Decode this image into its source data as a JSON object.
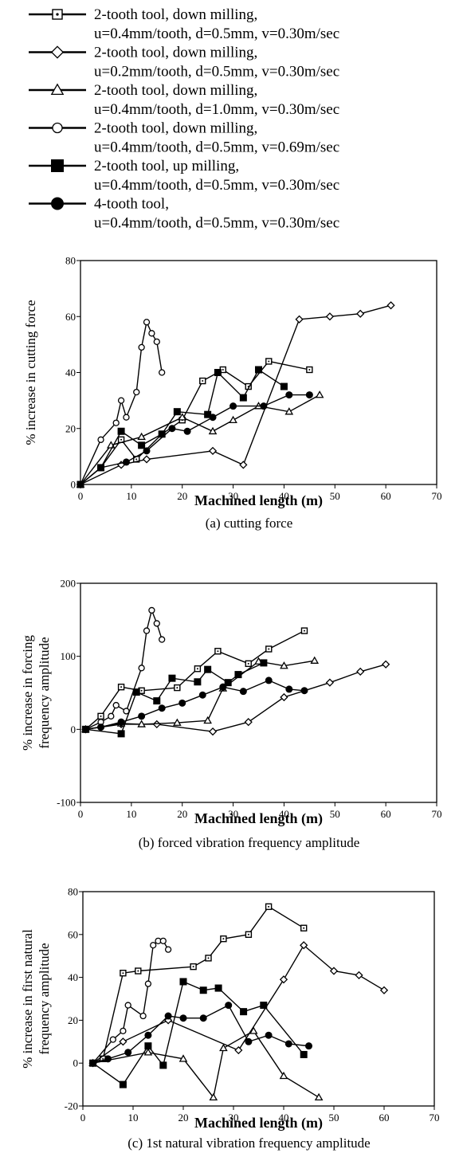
{
  "legend": [
    {
      "marker": "square-dot",
      "line1": "2-tooth tool, down milling,",
      "line2": "u=0.4mm/tooth, d=0.5mm, v=0.30m/sec"
    },
    {
      "marker": "diamond-open",
      "line1": "2-tooth tool, down milling,",
      "line2": "u=0.2mm/tooth, d=0.5mm, v=0.30m/sec"
    },
    {
      "marker": "triangle-open",
      "line1": "2-tooth tool, down milling,",
      "line2": "u=0.4mm/tooth, d=1.0mm, v=0.30m/sec"
    },
    {
      "marker": "circle-open",
      "line1": "2-tooth tool, down milling,",
      "line2": "u=0.4mm/tooth, d=0.5mm, v=0.69m/sec"
    },
    {
      "marker": "square-filled",
      "line1": "2-tooth tool, up milling,",
      "line2": "u=0.4mm/tooth, d=0.5mm, v=0.30m/sec"
    },
    {
      "marker": "circle-filled",
      "line1": "4-tooth tool,",
      "line2": "u=0.4mm/tooth, d=0.5mm, v=0.30m/sec"
    }
  ],
  "chart_data": [
    {
      "type": "line",
      "xlabel": "Machined length (m)",
      "ylabel": [
        "% increase in cutting force"
      ],
      "caption": "(a) cutting force",
      "xlim": [
        0,
        70
      ],
      "ylim": [
        0,
        80
      ],
      "xticks": [
        0,
        10,
        20,
        30,
        40,
        50,
        60,
        70
      ],
      "yticks": [
        0,
        20,
        40,
        60,
        80
      ],
      "grid": false,
      "series": [
        {
          "marker": "square-dot",
          "points": [
            [
              0,
              0
            ],
            [
              4,
              6
            ],
            [
              8,
              16
            ],
            [
              11,
              9
            ],
            [
              16,
              18
            ],
            [
              20,
              23
            ],
            [
              24,
              37
            ],
            [
              28,
              41
            ],
            [
              33,
              35
            ],
            [
              37,
              44
            ],
            [
              45,
              41
            ]
          ]
        },
        {
          "marker": "diamond-open",
          "points": [
            [
              0,
              0
            ],
            [
              8,
              7
            ],
            [
              13,
              9
            ],
            [
              26,
              12
            ],
            [
              32,
              7
            ],
            [
              43,
              59
            ],
            [
              49,
              60
            ],
            [
              55,
              61
            ],
            [
              61,
              64
            ]
          ]
        },
        {
          "marker": "triangle-open",
          "points": [
            [
              0,
              0
            ],
            [
              6,
              14
            ],
            [
              12,
              17
            ],
            [
              20,
              24
            ],
            [
              26,
              19
            ],
            [
              30,
              23
            ],
            [
              35,
              28
            ],
            [
              41,
              26
            ],
            [
              47,
              32
            ]
          ]
        },
        {
          "marker": "circle-open",
          "points": [
            [
              0,
              0
            ],
            [
              4,
              16
            ],
            [
              7,
              22
            ],
            [
              8,
              30
            ],
            [
              9,
              24
            ],
            [
              11,
              33
            ],
            [
              12,
              49
            ],
            [
              13,
              58
            ],
            [
              14,
              54
            ],
            [
              15,
              51
            ],
            [
              16,
              40
            ]
          ]
        },
        {
          "marker": "square-filled",
          "points": [
            [
              0,
              0
            ],
            [
              4,
              6
            ],
            [
              8,
              19
            ],
            [
              12,
              14
            ],
            [
              16,
              18
            ],
            [
              19,
              26
            ],
            [
              25,
              25
            ],
            [
              27,
              40
            ],
            [
              32,
              31
            ],
            [
              35,
              41
            ],
            [
              40,
              35
            ]
          ]
        },
        {
          "marker": "circle-filled",
          "points": [
            [
              0,
              0
            ],
            [
              4,
              6
            ],
            [
              9,
              8
            ],
            [
              13,
              12
            ],
            [
              18,
              20
            ],
            [
              21,
              19
            ],
            [
              26,
              24
            ],
            [
              30,
              28
            ],
            [
              36,
              28
            ],
            [
              41,
              32
            ],
            [
              45,
              32
            ]
          ]
        }
      ]
    },
    {
      "type": "line",
      "xlabel": "Machined length (m)",
      "ylabel": [
        "% increase in forcing",
        "frequency amplitude"
      ],
      "caption": "(b) forced vibration frequency amplitude",
      "xlim": [
        0,
        70
      ],
      "ylim": [
        -100,
        200
      ],
      "xticks": [
        0,
        10,
        20,
        30,
        40,
        50,
        60,
        70
      ],
      "yticks": [
        -100,
        0,
        100,
        200
      ],
      "grid": false,
      "series": [
        {
          "marker": "square-dot",
          "points": [
            [
              1,
              0
            ],
            [
              4,
              18
            ],
            [
              8,
              58
            ],
            [
              12,
              53
            ],
            [
              19,
              57
            ],
            [
              23,
              83
            ],
            [
              27,
              107
            ],
            [
              33,
              90
            ],
            [
              37,
              110
            ],
            [
              44,
              135
            ]
          ]
        },
        {
          "marker": "diamond-open",
          "points": [
            [
              1,
              0
            ],
            [
              8,
              7
            ],
            [
              15,
              7
            ],
            [
              26,
              -3
            ],
            [
              33,
              10
            ],
            [
              40,
              44
            ],
            [
              49,
              64
            ],
            [
              55,
              79
            ],
            [
              60,
              89
            ]
          ]
        },
        {
          "marker": "triangle-open",
          "points": [
            [
              1,
              0
            ],
            [
              8,
              8
            ],
            [
              12,
              7
            ],
            [
              19,
              9
            ],
            [
              25,
              12
            ],
            [
              28,
              56
            ],
            [
              35,
              93
            ],
            [
              40,
              87
            ],
            [
              46,
              94
            ]
          ]
        },
        {
          "marker": "circle-open",
          "points": [
            [
              1,
              0
            ],
            [
              4,
              10
            ],
            [
              6,
              18
            ],
            [
              7,
              33
            ],
            [
              9,
              25
            ],
            [
              12,
              84
            ],
            [
              13,
              135
            ],
            [
              14,
              163
            ],
            [
              15,
              145
            ],
            [
              16,
              123
            ]
          ]
        },
        {
          "marker": "square-filled",
          "points": [
            [
              1,
              0
            ],
            [
              8,
              -6
            ],
            [
              11,
              51
            ],
            [
              15,
              39
            ],
            [
              18,
              70
            ],
            [
              23,
              65
            ],
            [
              25,
              82
            ],
            [
              29,
              64
            ],
            [
              31,
              75
            ],
            [
              36,
              91
            ]
          ]
        },
        {
          "marker": "circle-filled",
          "points": [
            [
              1,
              0
            ],
            [
              4,
              3
            ],
            [
              8,
              10
            ],
            [
              12,
              18
            ],
            [
              16,
              29
            ],
            [
              20,
              36
            ],
            [
              24,
              47
            ],
            [
              28,
              58
            ],
            [
              32,
              52
            ],
            [
              37,
              67
            ],
            [
              41,
              55
            ],
            [
              44,
              53
            ]
          ]
        }
      ]
    },
    {
      "type": "line",
      "xlabel": "Machined length (m)",
      "ylabel": [
        "% increase in first natural",
        "frequency amplitude"
      ],
      "caption": "(c) 1st natural vibration frequency amplitude",
      "xlim": [
        0,
        70
      ],
      "ylim": [
        -20,
        80
      ],
      "xticks": [
        0,
        10,
        20,
        30,
        40,
        50,
        60,
        70
      ],
      "yticks": [
        -20,
        0,
        20,
        40,
        60,
        80
      ],
      "grid": false,
      "series": [
        {
          "marker": "square-dot",
          "points": [
            [
              2,
              0
            ],
            [
              4,
              2
            ],
            [
              8,
              42
            ],
            [
              11,
              43
            ],
            [
              22,
              45
            ],
            [
              25,
              49
            ],
            [
              28,
              58
            ],
            [
              33,
              60
            ],
            [
              37,
              73
            ],
            [
              44,
              63
            ]
          ]
        },
        {
          "marker": "diamond-open",
          "points": [
            [
              2,
              0
            ],
            [
              8,
              10
            ],
            [
              17,
              20
            ],
            [
              31,
              6
            ],
            [
              40,
              39
            ],
            [
              44,
              55
            ],
            [
              50,
              43
            ],
            [
              55,
              41
            ],
            [
              60,
              34
            ]
          ]
        },
        {
          "marker": "triangle-open",
          "points": [
            [
              2,
              0
            ],
            [
              13,
              5
            ],
            [
              20,
              2
            ],
            [
              26,
              -16
            ],
            [
              28,
              7
            ],
            [
              34,
              15
            ],
            [
              40,
              -6
            ],
            [
              47,
              -16
            ]
          ]
        },
        {
          "marker": "circle-open",
          "points": [
            [
              2,
              0
            ],
            [
              6,
              11
            ],
            [
              8,
              15
            ],
            [
              9,
              27
            ],
            [
              12,
              22
            ],
            [
              13,
              37
            ],
            [
              14,
              55
            ],
            [
              15,
              57
            ],
            [
              16,
              57
            ],
            [
              17,
              53
            ]
          ]
        },
        {
          "marker": "square-filled",
          "points": [
            [
              2,
              0
            ],
            [
              8,
              -10
            ],
            [
              13,
              8
            ],
            [
              16,
              -1
            ],
            [
              20,
              38
            ],
            [
              24,
              34
            ],
            [
              27,
              35
            ],
            [
              32,
              24
            ],
            [
              36,
              27
            ],
            [
              44,
              4
            ]
          ]
        },
        {
          "marker": "circle-filled",
          "points": [
            [
              2,
              0
            ],
            [
              5,
              2
            ],
            [
              9,
              5
            ],
            [
              13,
              13
            ],
            [
              17,
              22
            ],
            [
              20,
              21
            ],
            [
              24,
              21
            ],
            [
              29,
              27
            ],
            [
              33,
              10
            ],
            [
              37,
              13
            ],
            [
              41,
              9
            ],
            [
              45,
              8
            ]
          ]
        }
      ]
    }
  ]
}
